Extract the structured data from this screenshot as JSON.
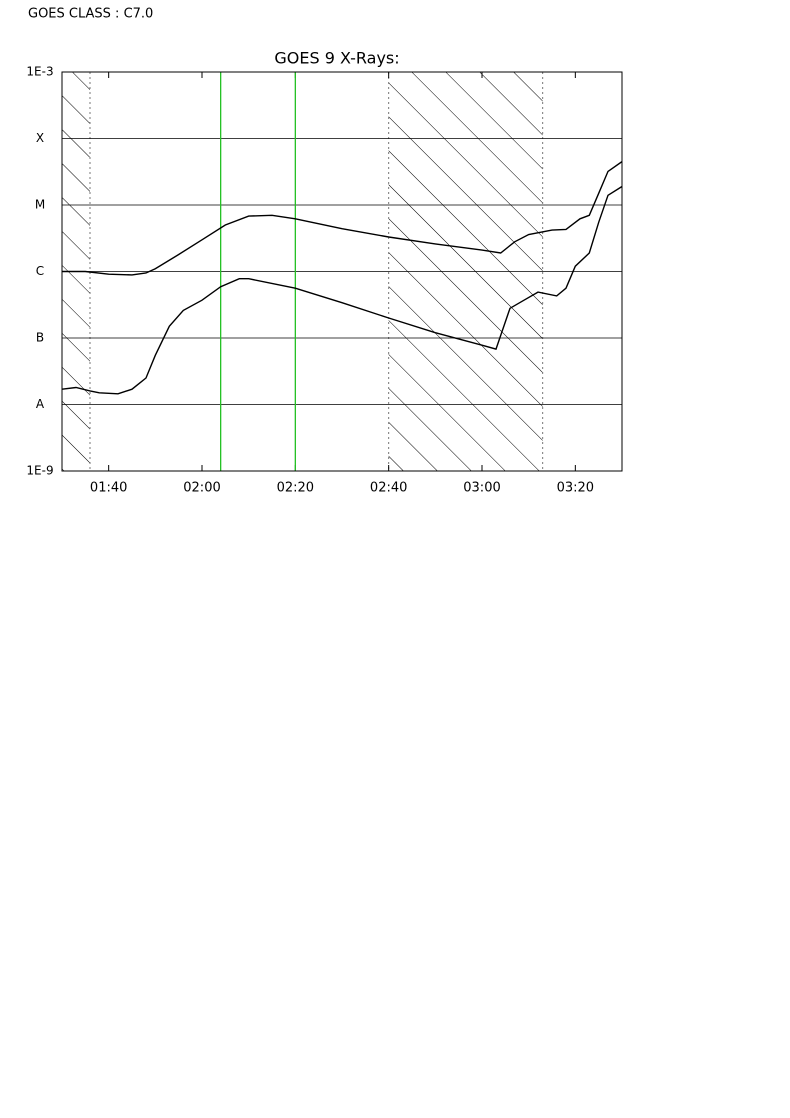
{
  "chart_data": {
    "type": "line",
    "title": "GOES 9 X-Rays:",
    "annotation": "GOES CLASS : C7.0",
    "log_scale": true,
    "grid": true,
    "xlim": [
      "01:30",
      "03:30"
    ],
    "xticks": [
      "01:40",
      "02:00",
      "02:20",
      "02:40",
      "03:00",
      "03:20"
    ],
    "ylim": [
      1e-09,
      0.001
    ],
    "yticks": [
      {
        "value": 1e-09,
        "label": "1E-9"
      },
      {
        "value": 1e-08,
        "label": "A"
      },
      {
        "value": 1e-07,
        "label": "B"
      },
      {
        "value": 1e-06,
        "label": "C"
      },
      {
        "value": 1e-05,
        "label": "M"
      },
      {
        "value": 0.0001,
        "label": "X"
      },
      {
        "value": 0.001,
        "label": "1E-3"
      }
    ],
    "shaded": [
      [
        "01:30",
        "01:36"
      ],
      [
        "02:40",
        "03:13"
      ]
    ],
    "markers": [
      "02:04",
      "02:20"
    ],
    "marker_color": "#22c022",
    "series": [
      {
        "color": "#000000",
        "x": [
          "01:30",
          "01:35",
          "01:40",
          "01:45",
          "01:48",
          "01:50",
          "01:55",
          "02:00",
          "02:05",
          "02:10",
          "02:15",
          "02:20",
          "02:30",
          "02:40",
          "02:50",
          "03:00",
          "03:04",
          "03:07",
          "03:10",
          "03:15",
          "03:18",
          "03:21",
          "03:23",
          "03:25",
          "03:27",
          "03:30"
        ],
        "values": [
          1e-06,
          1e-06,
          9.1e-07,
          8.9e-07,
          9.5e-07,
          1.1e-06,
          1.8e-06,
          3e-06,
          5e-06,
          6.8e-06,
          7e-06,
          6.2e-06,
          4.4e-06,
          3.3e-06,
          2.6e-06,
          2.1e-06,
          1.9e-06,
          2.8e-06,
          3.6e-06,
          4.2e-06,
          4.3e-06,
          6.2e-06,
          7e-06,
          1.5e-05,
          3.2e-05,
          4.5e-05
        ]
      },
      {
        "color": "#000000",
        "x": [
          "01:30",
          "01:33",
          "01:36",
          "01:38",
          "01:42",
          "01:45",
          "01:48",
          "01:50",
          "01:53",
          "01:56",
          "02:00",
          "02:04",
          "02:08",
          "02:10",
          "02:20",
          "02:30",
          "02:40",
          "02:50",
          "03:00",
          "03:03",
          "03:06",
          "03:09",
          "03:12",
          "03:16",
          "03:18",
          "03:20",
          "03:23",
          "03:25",
          "03:27",
          "03:30"
        ],
        "values": [
          1.7e-08,
          1.8e-08,
          1.6e-08,
          1.5e-08,
          1.45e-08,
          1.7e-08,
          2.5e-08,
          5.5e-08,
          1.5e-07,
          2.6e-07,
          3.7e-07,
          5.9e-07,
          7.8e-07,
          7.8e-07,
          5.6e-07,
          3.4e-07,
          2e-07,
          1.2e-07,
          7.8e-08,
          6.8e-08,
          2.8e-07,
          3.7e-07,
          4.9e-07,
          4.3e-07,
          5.6e-07,
          1.2e-06,
          1.9e-06,
          5.5e-06,
          1.4e-05,
          1.9e-05
        ]
      }
    ]
  }
}
